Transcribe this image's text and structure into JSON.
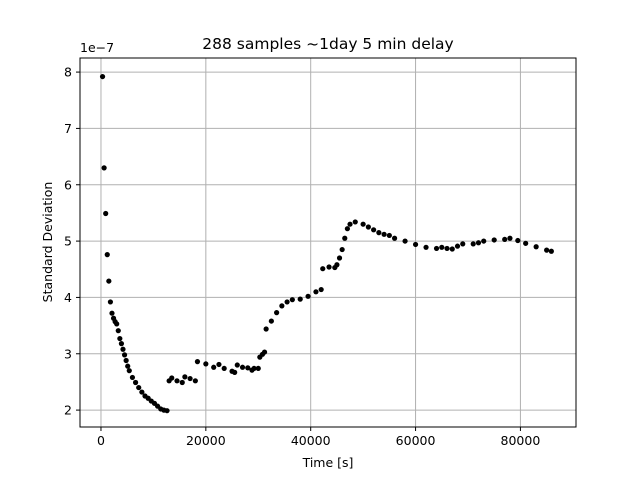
{
  "chart_data": {
    "type": "scatter",
    "title": "288 samples ~1day 5 min delay",
    "xlabel": "Time [s]",
    "ylabel": "Standard Deviation",
    "y_multiplier_label": "1e−7",
    "xlim": [
      -4000,
      90600
    ],
    "ylim": [
      1.7,
      8.25
    ],
    "x_ticks": [
      {
        "value": 0,
        "label": "0"
      },
      {
        "value": 20000,
        "label": "20000"
      },
      {
        "value": 40000,
        "label": "40000"
      },
      {
        "value": 60000,
        "label": "60000"
      },
      {
        "value": 80000,
        "label": "80000"
      }
    ],
    "y_ticks": [
      {
        "value": 2,
        "label": "2"
      },
      {
        "value": 3,
        "label": "3"
      },
      {
        "value": 4,
        "label": "4"
      },
      {
        "value": 5,
        "label": "5"
      },
      {
        "value": 6,
        "label": "6"
      },
      {
        "value": 7,
        "label": "7"
      },
      {
        "value": 8,
        "label": "8"
      }
    ],
    "grid": true,
    "marker_color": "#000000",
    "keypoints": [
      [
        300,
        7.92
      ],
      [
        600,
        6.3
      ],
      [
        900,
        5.49
      ],
      [
        1200,
        4.76
      ],
      [
        1500,
        4.29
      ],
      [
        1800,
        3.92
      ],
      [
        2100,
        3.72
      ],
      [
        2400,
        3.63
      ],
      [
        2700,
        3.57
      ],
      [
        3000,
        3.53
      ],
      [
        3300,
        3.41
      ],
      [
        3600,
        3.27
      ],
      [
        3900,
        3.18
      ],
      [
        4200,
        3.08
      ],
      [
        4500,
        2.98
      ],
      [
        4800,
        2.88
      ],
      [
        5100,
        2.78
      ],
      [
        5400,
        2.7
      ],
      [
        6000,
        2.58
      ],
      [
        6600,
        2.49
      ],
      [
        7200,
        2.4
      ],
      [
        7800,
        2.32
      ],
      [
        8400,
        2.25
      ],
      [
        9000,
        2.21
      ],
      [
        9600,
        2.16
      ],
      [
        10200,
        2.12
      ],
      [
        10800,
        2.07
      ],
      [
        11400,
        2.02
      ],
      [
        12000,
        2.0
      ],
      [
        12600,
        1.99
      ],
      [
        13000,
        2.52
      ],
      [
        13500,
        2.57
      ],
      [
        14500,
        2.52
      ],
      [
        15500,
        2.49
      ],
      [
        16000,
        2.59
      ],
      [
        17000,
        2.56
      ],
      [
        18000,
        2.52
      ],
      [
        18400,
        2.86
      ],
      [
        20000,
        2.82
      ],
      [
        21500,
        2.76
      ],
      [
        22500,
        2.81
      ],
      [
        23500,
        2.74
      ],
      [
        25000,
        2.69
      ],
      [
        25500,
        2.67
      ],
      [
        26000,
        2.8
      ],
      [
        27000,
        2.76
      ],
      [
        28000,
        2.75
      ],
      [
        28800,
        2.71
      ],
      [
        29200,
        2.74
      ],
      [
        30000,
        2.74
      ],
      [
        30300,
        2.94
      ],
      [
        30800,
        2.99
      ],
      [
        31200,
        3.03
      ],
      [
        31500,
        3.44
      ],
      [
        32500,
        3.58
      ],
      [
        33500,
        3.73
      ],
      [
        34500,
        3.85
      ],
      [
        35500,
        3.92
      ],
      [
        36500,
        3.96
      ],
      [
        38000,
        3.97
      ],
      [
        39500,
        4.02
      ],
      [
        41000,
        4.1
      ],
      [
        42000,
        4.14
      ],
      [
        42300,
        4.51
      ],
      [
        43500,
        4.54
      ],
      [
        44600,
        4.53
      ],
      [
        45000,
        4.58
      ],
      [
        45500,
        4.7
      ],
      [
        46000,
        4.85
      ],
      [
        46500,
        5.05
      ],
      [
        47000,
        5.22
      ],
      [
        47500,
        5.3
      ],
      [
        48500,
        5.34
      ],
      [
        50000,
        5.3
      ],
      [
        51000,
        5.25
      ],
      [
        52000,
        5.2
      ],
      [
        53000,
        5.15
      ],
      [
        54000,
        5.12
      ],
      [
        55000,
        5.1
      ],
      [
        56000,
        5.05
      ],
      [
        58000,
        5.0
      ],
      [
        60000,
        4.94
      ],
      [
        62000,
        4.89
      ],
      [
        64000,
        4.87
      ],
      [
        65000,
        4.89
      ],
      [
        66000,
        4.87
      ],
      [
        67000,
        4.86
      ],
      [
        68000,
        4.91
      ],
      [
        69000,
        4.95
      ],
      [
        71000,
        4.95
      ],
      [
        72000,
        4.97
      ],
      [
        73000,
        5.0
      ],
      [
        75000,
        5.02
      ],
      [
        77000,
        5.03
      ],
      [
        78000,
        5.05
      ],
      [
        79500,
        5.01
      ],
      [
        81000,
        4.96
      ],
      [
        83000,
        4.9
      ],
      [
        85000,
        4.84
      ],
      [
        85900,
        4.82
      ]
    ]
  }
}
